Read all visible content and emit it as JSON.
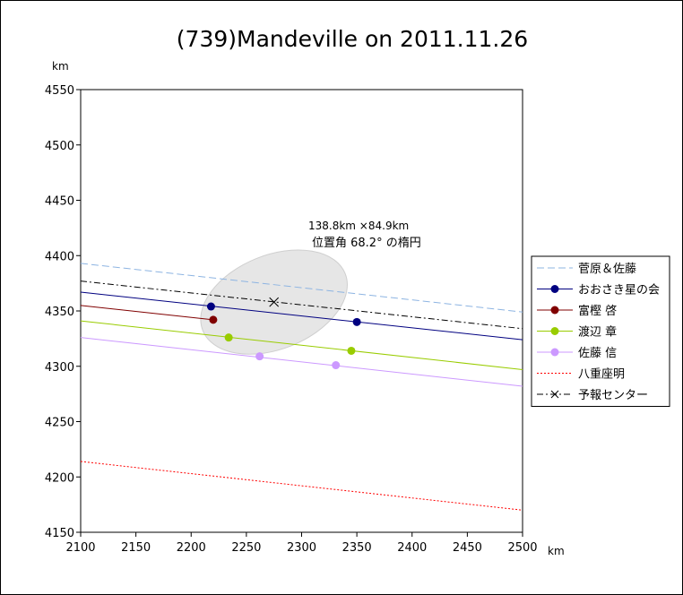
{
  "chart_data": {
    "type": "line",
    "title": "(739)Mandeville on 2011.11.26",
    "xlabel": "km",
    "ylabel": "km",
    "xlim": [
      2100,
      2500
    ],
    "ylim": [
      4150,
      4550
    ],
    "xticks": [
      2100,
      2150,
      2200,
      2250,
      2300,
      2350,
      2400,
      2450,
      2500
    ],
    "yticks": [
      4150,
      4200,
      4250,
      4300,
      4350,
      4400,
      4450,
      4500,
      4550
    ],
    "grid": false,
    "legend_position": "right",
    "annotation": {
      "line1": "138.8km ×84.9km",
      "line2": "位置角 68.2° の楕円"
    },
    "ellipse": {
      "center": [
        2275,
        4358
      ],
      "major_km": 138.8,
      "minor_km": 84.9,
      "position_angle_deg": 68.2,
      "fill": "#e6e6e6",
      "stroke": "#cfcfcf"
    },
    "series": [
      {
        "name": "菅原＆佐藤",
        "color": "#8db4e2",
        "style": "dashed",
        "marker": false,
        "line": [
          [
            2100,
            4393
          ],
          [
            2500,
            4349
          ]
        ],
        "points": []
      },
      {
        "name": "おおさき星の会",
        "color": "#000080",
        "style": "solid",
        "marker": true,
        "line": [
          [
            2100,
            4367
          ],
          [
            2500,
            4324
          ]
        ],
        "points": [
          [
            2218,
            4354
          ],
          [
            2350,
            4340
          ]
        ]
      },
      {
        "name": "富樫 啓",
        "color": "#800000",
        "style": "solid",
        "marker": true,
        "line": [
          [
            2100,
            4355
          ],
          [
            2220,
            4342
          ]
        ],
        "points": [
          [
            2220,
            4342
          ]
        ]
      },
      {
        "name": "渡辺 章",
        "color": "#99cc00",
        "style": "solid",
        "marker": true,
        "line": [
          [
            2100,
            4341
          ],
          [
            2500,
            4297
          ]
        ],
        "points": [
          [
            2234,
            4326
          ],
          [
            2345,
            4314
          ]
        ]
      },
      {
        "name": "佐藤 信",
        "color": "#cc99ff",
        "style": "solid",
        "marker": true,
        "line": [
          [
            2100,
            4326
          ],
          [
            2500,
            4282
          ]
        ],
        "points": [
          [
            2262,
            4309
          ],
          [
            2331,
            4301
          ]
        ]
      },
      {
        "name": "八重座明",
        "color": "#ff0000",
        "style": "dotted",
        "marker": false,
        "line": [
          [
            2100,
            4214
          ],
          [
            2500,
            4170
          ]
        ],
        "points": []
      },
      {
        "name": "予報センター",
        "color": "#000000",
        "style": "dashdot",
        "marker": "x",
        "line": [
          [
            2100,
            4377
          ],
          [
            2500,
            4334
          ]
        ],
        "points": [
          [
            2275,
            4358
          ]
        ]
      }
    ]
  }
}
